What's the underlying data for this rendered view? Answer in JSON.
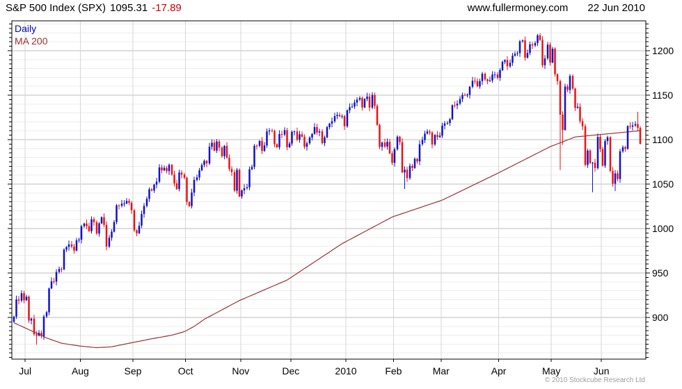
{
  "header": {
    "instrument": "S&P 500 Index (SPX)",
    "last": "1095.31",
    "change": "-17.89",
    "website": "www.fullermoney.com",
    "date": "22 Jun 2010"
  },
  "legend": {
    "daily": "Daily",
    "ma": "MA 200"
  },
  "footer": {
    "copyright": "© 2010 Stockcube Research Ltd"
  },
  "colors": {
    "up_candle": "#1111CC",
    "down_candle": "#EE1111",
    "ma_line": "#993333",
    "daily_label": "#0000BB",
    "change_text": "#CC0000",
    "grid_minor": "#ECECEC",
    "grid_major": "#BDBDBD",
    "grid_month": "#D6D6D6",
    "axis": "#000000",
    "label_text": "#000000",
    "copyright_text": "#9C9C9C"
  },
  "chart_data": {
    "type": "candlestick",
    "title": "S&P 500 Index (SPX) Daily with 200-day Moving Average",
    "last": 1095.31,
    "change": -17.89,
    "ylim": [
      853,
      1234
    ],
    "y_major_ticks": [
      900,
      950,
      1000,
      1050,
      1100,
      1150,
      1200
    ],
    "y_minor_step": 10,
    "y_tick_step": 5,
    "grid": true,
    "legend_position": "top-left",
    "x_months": [
      {
        "label": "Jul",
        "start_index": 5
      },
      {
        "label": "Aug",
        "start_index": 27
      },
      {
        "label": "Sep",
        "start_index": 48
      },
      {
        "label": "Oct",
        "start_index": 69
      },
      {
        "label": "Nov",
        "start_index": 91
      },
      {
        "label": "Dec",
        "start_index": 111
      },
      {
        "label": "2010",
        "start_index": 133
      },
      {
        "label": "Feb",
        "start_index": 152
      },
      {
        "label": "Mar",
        "start_index": 171
      },
      {
        "label": "Apr",
        "start_index": 194
      },
      {
        "label": "May",
        "start_index": 215
      },
      {
        "label": "Jun",
        "start_index": 235
      }
    ],
    "open_first": 895.1,
    "closes": [
      900.94,
      920.26,
      918.9,
      927.23,
      919.32,
      923.33,
      896.42,
      898.72,
      881.03,
      879.56,
      882.68,
      879.13,
      901.05,
      905.84,
      932.68,
      940.74,
      940.38,
      951.13,
      954.58,
      954.07,
      976.29,
      979.26,
      982.18,
      979.62,
      975.15,
      986.75,
      987.48,
      1002.63,
      1005.65,
      1002.72,
      997.08,
      1010.48,
      1007.1,
      994.35,
      1005.81,
      1012.73,
      1004.09,
      979.73,
      989.67,
      996.46,
      1007.37,
      1026.13,
      1025.57,
      1028.0,
      1028.12,
      1030.98,
      1028.93,
      1020.62,
      998.04,
      994.75,
      1003.24,
      1016.4,
      1025.39,
      1033.37,
      1044.14,
      1042.73,
      1049.34,
      1052.63,
      1068.76,
      1065.49,
      1068.3,
      1064.66,
      1071.66,
      1060.87,
      1050.78,
      1044.38,
      1062.98,
      1060.61,
      1057.08,
      1029.85,
      1025.21,
      1040.46,
      1054.72,
      1057.58,
      1065.48,
      1071.49,
      1076.19,
      1073.19,
      1092.02,
      1096.56,
      1087.68,
      1097.91,
      1091.06,
      1081.4,
      1092.91,
      1079.6,
      1066.95,
      1063.41,
      1042.63,
      1066.11,
      1036.19,
      1042.88,
      1045.41,
      1046.5,
      1066.63,
      1069.3,
      1093.08,
      1093.01,
      1098.51,
      1087.24,
      1093.48,
      1109.3,
      1110.32,
      1109.8,
      1094.9,
      1091.38,
      1106.24,
      1105.65,
      1110.63,
      1091.49,
      1095.63,
      1108.86,
      1109.24,
      1099.92,
      1105.98,
      1103.25,
      1091.94,
      1095.95,
      1102.35,
      1106.41,
      1114.11,
      1107.93,
      1109.18,
      1096.08,
      1102.47,
      1114.05,
      1118.02,
      1120.59,
      1126.48,
      1127.78,
      1126.2,
      1126.42,
      1115.1,
      1132.99,
      1136.52,
      1137.14,
      1141.69,
      1144.98,
      1146.98,
      1136.22,
      1145.68,
      1148.46,
      1136.03,
      1150.23,
      1138.04,
      1116.48,
      1091.76,
      1096.78,
      1092.17,
      1097.5,
      1084.53,
      1073.87,
      1089.19,
      1103.32,
      1097.28,
      1063.11,
      1066.19,
      1056.74,
      1070.52,
      1068.13,
      1078.47,
      1075.51,
      1094.87,
      1099.51,
      1106.75,
      1109.17,
      1108.01,
      1094.6,
      1105.24,
      1102.94,
      1104.49,
      1115.71,
      1118.31,
      1118.79,
      1122.97,
      1138.7,
      1138.5,
      1140.45,
      1145.61,
      1150.24,
      1149.99,
      1150.51,
      1159.46,
      1166.21,
      1165.83,
      1159.9,
      1165.81,
      1174.17,
      1167.72,
      1165.73,
      1166.59,
      1173.22,
      1173.27,
      1169.43,
      1178.1,
      1187.44,
      1189.44,
      1182.45,
      1186.44,
      1194.37,
      1196.48,
      1197.3,
      1210.65,
      1211.67,
      1192.13,
      1197.52,
      1207.17,
      1205.94,
      1208.67,
      1217.28,
      1212.05,
      1183.71,
      1191.36,
      1206.78,
      1186.69,
      1202.26,
      1173.6,
      1165.87,
      1128.15,
      1110.88,
      1159.73,
      1155.79,
      1171.67,
      1157.44,
      1135.68,
      1136.94,
      1120.8,
      1115.05,
      1071.59,
      1087.69,
      1073.65,
      1074.03,
      1067.95,
      1103.06,
      1089.41,
      1070.71,
      1098.38,
      1102.83,
      1064.88,
      1050.47,
      1062.0,
      1055.69,
      1086.84,
      1091.6,
      1089.63,
      1115.23,
      1114.61,
      1116.04,
      1117.51,
      1113.2,
      1095.31
    ],
    "wick_overrides": {
      "9": {
        "low": 869.32
      },
      "156": {
        "low": 1044.5
      },
      "210": {
        "high": 1219.8
      },
      "218": {
        "low": 1065.79,
        "high": 1167.58
      },
      "219": {
        "low": 1094.15
      },
      "231": {
        "low": 1040.78
      },
      "240": {
        "low": 1042.17
      },
      "249": {
        "high": 1131.23
      }
    },
    "ma200_keypoints": [
      [
        0,
        894
      ],
      [
        7,
        885
      ],
      [
        13,
        877
      ],
      [
        19,
        871
      ],
      [
        26,
        868
      ],
      [
        33,
        866
      ],
      [
        39,
        867
      ],
      [
        46,
        871
      ],
      [
        55,
        876
      ],
      [
        63,
        880
      ],
      [
        68,
        884
      ],
      [
        72,
        890
      ],
      [
        76,
        898
      ],
      [
        80,
        904
      ],
      [
        90,
        919
      ],
      [
        109,
        942
      ],
      [
        131,
        983
      ],
      [
        151,
        1013
      ],
      [
        171,
        1032
      ],
      [
        193,
        1062
      ],
      [
        214,
        1092
      ],
      [
        224,
        1103
      ],
      [
        235,
        1106
      ],
      [
        250,
        1110
      ]
    ]
  }
}
